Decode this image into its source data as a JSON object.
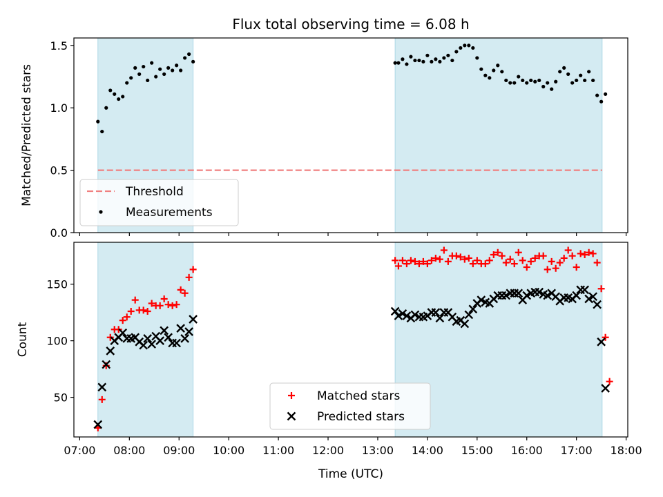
{
  "chart_data": {
    "title": "Flux total observing time = 6.08 h",
    "xlabel": "Time (UTC)",
    "xlim": [
      "07:00",
      "18:00"
    ],
    "xticks": [
      "07:00",
      "08:00",
      "09:00",
      "10:00",
      "11:00",
      "12:00",
      "13:00",
      "14:00",
      "15:00",
      "16:00",
      "17:00",
      "18:00"
    ],
    "observing_windows": [
      [
        "07:22",
        "09:17"
      ],
      [
        "13:21",
        "17:31"
      ]
    ],
    "panels": [
      {
        "type": "scatter",
        "ylabel": "Matched/Predicted stars",
        "ylim": [
          0,
          1.56
        ],
        "yticks": [
          0.0,
          0.5,
          1.0,
          1.5
        ],
        "yticklabels": [
          "0.0",
          "0.5",
          "1.0",
          "1.5"
        ],
        "legend_position": "lower-left",
        "threshold": {
          "label": "Threshold",
          "value": 0.5,
          "color": "#f08080",
          "start": "07:22",
          "end": "17:31"
        },
        "series": [
          {
            "name": "Measurements",
            "color": "#000000",
            "marker": "dot",
            "points": [
              [
                "07:22",
                0.89
              ],
              [
                "07:27",
                0.81
              ],
              [
                "07:32",
                1.0
              ],
              [
                "07:37",
                1.14
              ],
              [
                "07:42",
                1.11
              ],
              [
                "07:47",
                1.07
              ],
              [
                "07:52",
                1.09
              ],
              [
                "07:57",
                1.2
              ],
              [
                "08:02",
                1.24
              ],
              [
                "08:07",
                1.32
              ],
              [
                "08:12",
                1.27
              ],
              [
                "08:17",
                1.33
              ],
              [
                "08:22",
                1.22
              ],
              [
                "08:27",
                1.36
              ],
              [
                "08:32",
                1.25
              ],
              [
                "08:37",
                1.31
              ],
              [
                "08:42",
                1.27
              ],
              [
                "08:47",
                1.32
              ],
              [
                "08:52",
                1.3
              ],
              [
                "08:57",
                1.34
              ],
              [
                "09:02",
                1.3
              ],
              [
                "09:07",
                1.4
              ],
              [
                "09:12",
                1.43
              ],
              [
                "09:17",
                1.37
              ],
              [
                "13:21",
                1.36
              ],
              [
                "13:25",
                1.36
              ],
              [
                "13:30",
                1.39
              ],
              [
                "13:35",
                1.35
              ],
              [
                "13:40",
                1.41
              ],
              [
                "13:45",
                1.38
              ],
              [
                "13:50",
                1.38
              ],
              [
                "13:55",
                1.37
              ],
              [
                "14:00",
                1.42
              ],
              [
                "14:05",
                1.37
              ],
              [
                "14:10",
                1.39
              ],
              [
                "14:15",
                1.37
              ],
              [
                "14:20",
                1.4
              ],
              [
                "14:25",
                1.42
              ],
              [
                "14:30",
                1.38
              ],
              [
                "14:35",
                1.45
              ],
              [
                "14:40",
                1.48
              ],
              [
                "14:45",
                1.5
              ],
              [
                "14:50",
                1.5
              ],
              [
                "14:55",
                1.48
              ],
              [
                "15:00",
                1.4
              ],
              [
                "15:05",
                1.31
              ],
              [
                "15:10",
                1.26
              ],
              [
                "15:15",
                1.24
              ],
              [
                "15:20",
                1.3
              ],
              [
                "15:25",
                1.34
              ],
              [
                "15:30",
                1.29
              ],
              [
                "15:35",
                1.22
              ],
              [
                "15:40",
                1.2
              ],
              [
                "15:45",
                1.2
              ],
              [
                "15:50",
                1.25
              ],
              [
                "15:55",
                1.22
              ],
              [
                "16:00",
                1.2
              ],
              [
                "16:05",
                1.22
              ],
              [
                "16:10",
                1.21
              ],
              [
                "16:15",
                1.22
              ],
              [
                "16:20",
                1.17
              ],
              [
                "16:25",
                1.2
              ],
              [
                "16:30",
                1.15
              ],
              [
                "16:35",
                1.21
              ],
              [
                "16:40",
                1.29
              ],
              [
                "16:45",
                1.32
              ],
              [
                "16:50",
                1.27
              ],
              [
                "16:55",
                1.2
              ],
              [
                "17:00",
                1.22
              ],
              [
                "17:05",
                1.26
              ],
              [
                "17:10",
                1.22
              ],
              [
                "17:15",
                1.29
              ],
              [
                "17:20",
                1.22
              ],
              [
                "17:25",
                1.1
              ],
              [
                "17:30",
                1.05
              ],
              [
                "17:35",
                1.11
              ]
            ]
          }
        ]
      },
      {
        "type": "scatter",
        "ylabel": "Count",
        "ylim": [
          15,
          187
        ],
        "yticks": [
          50,
          100,
          150
        ],
        "yticklabels": [
          "50",
          "100",
          "150"
        ],
        "legend_position": "lower-center",
        "series": [
          {
            "name": "Matched stars",
            "color": "#ff0000",
            "marker": "plus",
            "points": [
              [
                "07:22",
                23
              ],
              [
                "07:27",
                48
              ],
              [
                "07:32",
                78
              ],
              [
                "07:37",
                103
              ],
              [
                "07:42",
                110
              ],
              [
                "07:47",
                110
              ],
              [
                "07:52",
                118
              ],
              [
                "07:57",
                121
              ],
              [
                "08:02",
                126
              ],
              [
                "08:07",
                136
              ],
              [
                "08:12",
                127
              ],
              [
                "08:17",
                127
              ],
              [
                "08:22",
                126
              ],
              [
                "08:27",
                133
              ],
              [
                "08:32",
                131
              ],
              [
                "08:37",
                131
              ],
              [
                "08:42",
                137
              ],
              [
                "08:47",
                132
              ],
              [
                "08:52",
                131
              ],
              [
                "08:57",
                132
              ],
              [
                "09:02",
                145
              ],
              [
                "09:07",
                142
              ],
              [
                "09:12",
                156
              ],
              [
                "09:17",
                163
              ],
              [
                "13:21",
                171
              ],
              [
                "13:25",
                166
              ],
              [
                "13:30",
                171
              ],
              [
                "13:35",
                168
              ],
              [
                "13:40",
                171
              ],
              [
                "13:45",
                170
              ],
              [
                "13:50",
                168
              ],
              [
                "13:55",
                170
              ],
              [
                "14:00",
                168
              ],
              [
                "14:05",
                171
              ],
              [
                "14:10",
                173
              ],
              [
                "14:15",
                172
              ],
              [
                "14:20",
                180
              ],
              [
                "14:25",
                170
              ],
              [
                "14:30",
                175
              ],
              [
                "14:35",
                175
              ],
              [
                "14:40",
                174
              ],
              [
                "14:45",
                172
              ],
              [
                "14:50",
                173
              ],
              [
                "14:55",
                168
              ],
              [
                "15:00",
                171
              ],
              [
                "15:05",
                168
              ],
              [
                "15:10",
                168
              ],
              [
                "15:15",
                171
              ],
              [
                "15:20",
                176
              ],
              [
                "15:25",
                178
              ],
              [
                "15:30",
                175
              ],
              [
                "15:35",
                169
              ],
              [
                "15:40",
                172
              ],
              [
                "15:45",
                168
              ],
              [
                "15:50",
                178
              ],
              [
                "15:55",
                171
              ],
              [
                "16:00",
                165
              ],
              [
                "16:05",
                170
              ],
              [
                "16:10",
                173
              ],
              [
                "16:15",
                175
              ],
              [
                "16:20",
                175
              ],
              [
                "16:25",
                163
              ],
              [
                "16:30",
                170
              ],
              [
                "16:35",
                164
              ],
              [
                "16:40",
                169
              ],
              [
                "16:45",
                173
              ],
              [
                "16:50",
                180
              ],
              [
                "16:55",
                175
              ],
              [
                "17:00",
                165
              ],
              [
                "17:05",
                177
              ],
              [
                "17:10",
                176
              ],
              [
                "17:15",
                178
              ],
              [
                "17:20",
                177
              ],
              [
                "17:25",
                169
              ],
              [
                "17:30",
                146
              ],
              [
                "17:35",
                103
              ],
              [
                "17:40",
                64
              ]
            ]
          },
          {
            "name": "Predicted stars",
            "color": "#000000",
            "marker": "x",
            "points": [
              [
                "07:22",
                26
              ],
              [
                "07:27",
                59
              ],
              [
                "07:32",
                79
              ],
              [
                "07:37",
                91
              ],
              [
                "07:42",
                100
              ],
              [
                "07:47",
                103
              ],
              [
                "07:52",
                107
              ],
              [
                "07:57",
                102
              ],
              [
                "08:02",
                102
              ],
              [
                "08:07",
                103
              ],
              [
                "08:12",
                99
              ],
              [
                "08:17",
                96
              ],
              [
                "08:22",
                102
              ],
              [
                "08:27",
                97
              ],
              [
                "08:32",
                104
              ],
              [
                "08:37",
                100
              ],
              [
                "08:42",
                109
              ],
              [
                "08:47",
                103
              ],
              [
                "08:52",
                98
              ],
              [
                "08:57",
                98
              ],
              [
                "09:02",
                111
              ],
              [
                "09:07",
                102
              ],
              [
                "09:12",
                108
              ],
              [
                "09:17",
                119
              ],
              [
                "13:21",
                126
              ],
              [
                "13:25",
                122
              ],
              [
                "13:30",
                124
              ],
              [
                "13:35",
                122
              ],
              [
                "13:40",
                120
              ],
              [
                "13:45",
                123
              ],
              [
                "13:50",
                121
              ],
              [
                "13:55",
                121
              ],
              [
                "14:00",
                122
              ],
              [
                "14:05",
                125
              ],
              [
                "14:10",
                125
              ],
              [
                "14:15",
                120
              ],
              [
                "14:20",
                125
              ],
              [
                "14:25",
                125
              ],
              [
                "14:30",
                121
              ],
              [
                "14:35",
                117
              ],
              [
                "14:40",
                118
              ],
              [
                "14:45",
                115
              ],
              [
                "14:50",
                123
              ],
              [
                "14:55",
                128
              ],
              [
                "15:00",
                133
              ],
              [
                "15:05",
                136
              ],
              [
                "15:10",
                134
              ],
              [
                "15:15",
                133
              ],
              [
                "15:20",
                137
              ],
              [
                "15:25",
                140
              ],
              [
                "15:30",
                140
              ],
              [
                "15:35",
                140
              ],
              [
                "15:40",
                142
              ],
              [
                "15:45",
                142
              ],
              [
                "15:50",
                142
              ],
              [
                "15:55",
                136
              ],
              [
                "16:00",
                140
              ],
              [
                "16:05",
                142
              ],
              [
                "16:10",
                143
              ],
              [
                "16:15",
                143
              ],
              [
                "16:20",
                141
              ],
              [
                "16:25",
                140
              ],
              [
                "16:30",
                142
              ],
              [
                "16:35",
                139
              ],
              [
                "16:40",
                135
              ],
              [
                "16:45",
                138
              ],
              [
                "16:50",
                138
              ],
              [
                "16:55",
                137
              ],
              [
                "17:00",
                140
              ],
              [
                "17:05",
                145
              ],
              [
                "17:10",
                145
              ],
              [
                "17:15",
                137
              ],
              [
                "17:20",
                139
              ],
              [
                "17:25",
                132
              ],
              [
                "17:30",
                99
              ],
              [
                "17:35",
                58
              ]
            ]
          }
        ]
      }
    ]
  }
}
